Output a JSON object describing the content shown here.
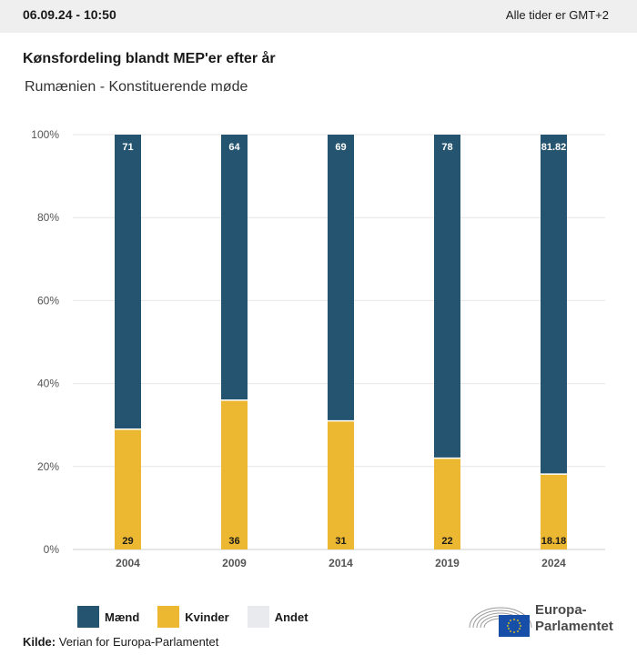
{
  "header": {
    "datetime": "06.09.24 - 10:50",
    "timezone_note": "Alle tider er GMT+2"
  },
  "chart_data": {
    "type": "bar",
    "stacked": true,
    "title": "Kønsfordeling blandt MEP'er efter år",
    "subtitle": "Rumænien - Konstituerende møde",
    "categories": [
      "2004",
      "2009",
      "2014",
      "2019",
      "2024"
    ],
    "series": [
      {
        "name": "Kvinder",
        "color": "#ecb731",
        "values": [
          29,
          36,
          31,
          22,
          18.18
        ],
        "labels": [
          "29",
          "36",
          "31",
          "22",
          "18.18"
        ]
      },
      {
        "name": "Mænd",
        "color": "#24546f",
        "values": [
          71,
          64,
          69,
          78,
          81.82
        ],
        "labels": [
          "71",
          "64",
          "69",
          "78",
          "81.82"
        ]
      },
      {
        "name": "Andet",
        "color": "#e9eaee",
        "values": [
          0,
          0,
          0,
          0,
          0
        ]
      }
    ],
    "yticks": [
      "0%",
      "20%",
      "40%",
      "60%",
      "80%",
      "100%"
    ],
    "ylim": [
      0,
      100
    ],
    "grid": true,
    "legend_position": "bottom-left"
  },
  "legend": [
    {
      "label": "Mænd",
      "color": "#24546f"
    },
    {
      "label": "Kvinder",
      "color": "#ecb731"
    },
    {
      "label": "Andet",
      "color": "#e9eaee"
    }
  ],
  "source": {
    "prefix": "Kilde:",
    "text": " Verian for Europa-Parlamentet"
  },
  "logo": {
    "line1": "Europa-",
    "line2": "Parlamentet"
  }
}
